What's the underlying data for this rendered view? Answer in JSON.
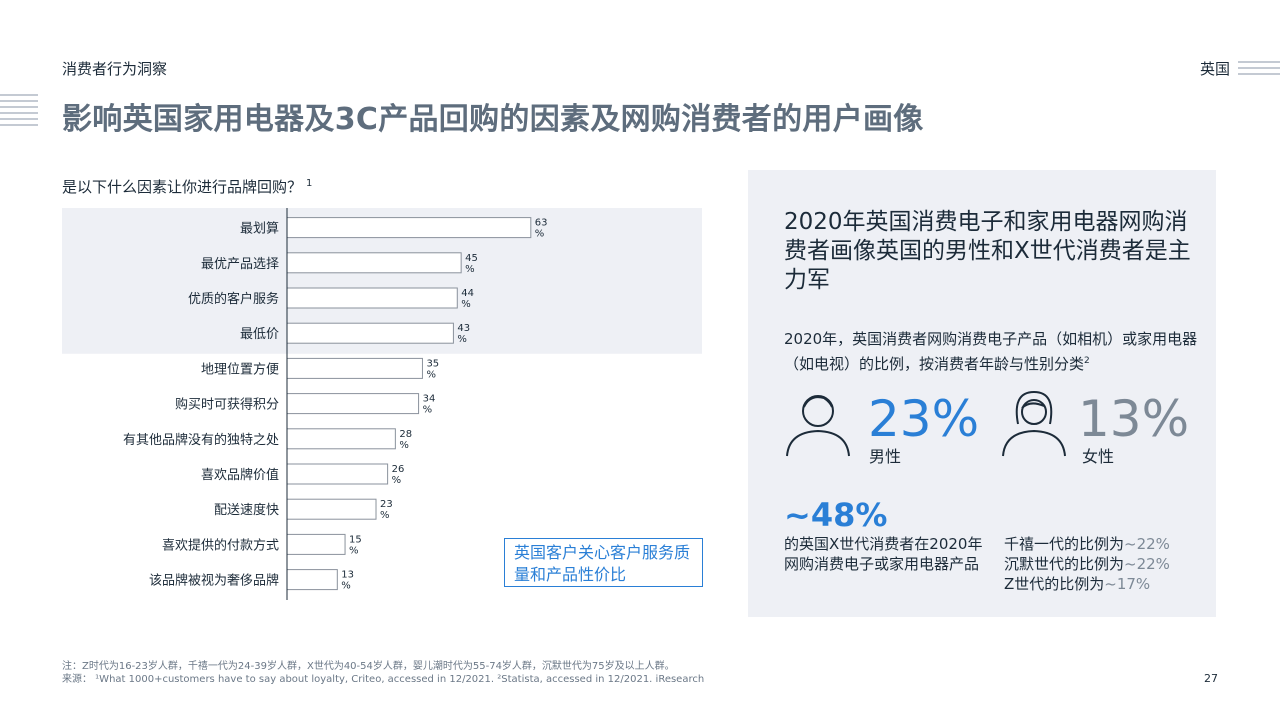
{
  "header": {
    "section": "消费者行为洞察",
    "country": "英国",
    "title": "影响英国家用电器及3C产品回购的因素及网购消费者的用户画像"
  },
  "chart_question": "是以下什么因素让你进行品牌回购？",
  "chart_question_sup": "1",
  "chart_data": {
    "type": "bar",
    "orientation": "horizontal",
    "title": "是以下什么因素让你进行品牌回购？",
    "categories": [
      "最划算",
      "最优产品选择",
      "优质的客户服务",
      "最低价",
      "地理位置方便",
      "购买时可获得积分",
      "有其他品牌没有的独特之处",
      "喜欢品牌价值",
      "配送速度快",
      "喜欢提供的付款方式",
      "该品牌被视为奢侈品牌"
    ],
    "values": [
      63,
      45,
      44,
      43,
      35,
      34,
      28,
      26,
      23,
      15,
      13
    ],
    "unit": "%",
    "highlighted_categories": [
      "最划算",
      "最优产品选择",
      "优质的客户服务",
      "最低价"
    ],
    "highlight_color": "#eef0f5",
    "bar_fill": "#ffffff",
    "bar_stroke": "#8a929c"
  },
  "callout": "英国客户关心客户服务质量和产品性价比",
  "panel": {
    "title": "2020年英国消费电子和家用电器网购消费者画像英国的男性和X世代消费者是主力军",
    "subtitle": "2020年，英国消费者网购消费电子产品（如相机）或家用电器（如电视）的比例，按消费者年龄与性别分类",
    "subtitle_sup": "2",
    "male": {
      "value": "23%",
      "label": "男性",
      "color": "#2a7fd6",
      "icon": "male-person-icon"
    },
    "female": {
      "value": "13%",
      "label": "女性",
      "color": "#7d8996",
      "icon": "female-person-icon"
    },
    "genx_value": "~48%",
    "genx_desc": "的英国X世代消费者在2020年网购消费电子或家用电器产品",
    "generations": [
      {
        "label": "千禧一代的比例为",
        "value": "~22%"
      },
      {
        "label": "沉默世代的比例为",
        "value": "~22%"
      },
      {
        "label": "Z世代的比例为",
        "value": "~17%"
      }
    ]
  },
  "footnotes": {
    "note": "注：Z时代为16-23岁人群，千禧一代为24-39岁人群，X世代为40-54岁人群，婴儿潮时代为55-74岁人群，沉默世代为75岁及以上人群。",
    "source": "来源： ¹What 1000+customers have to say about loyalty, Criteo, accessed in 12/2021. ²Statista, accessed in 12/2021. iResearch"
  },
  "page_number": "27"
}
